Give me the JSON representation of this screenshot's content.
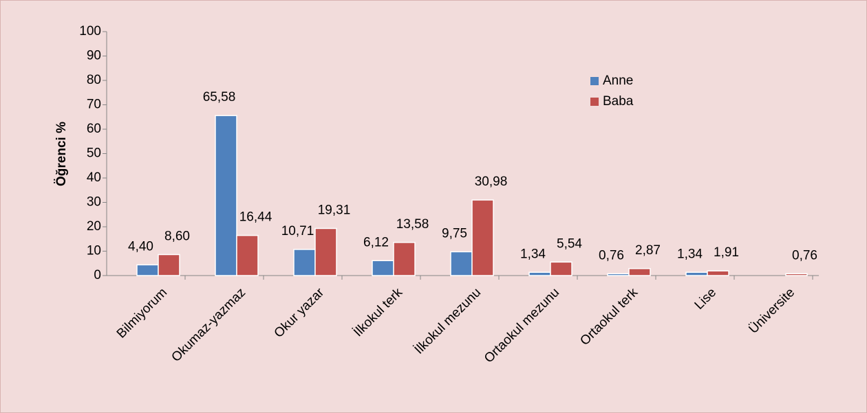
{
  "chart_data": {
    "type": "bar",
    "y_label": "Öğrenci %",
    "categories": [
      "Bilmiyorum",
      "Okumaz-yazmaz",
      "Okur yazar",
      "İlkokul terk",
      "İlkokul mezunu",
      "Ortaokul mezunu",
      "Ortaokul terk",
      "Lise",
      "Üniversite"
    ],
    "series": [
      {
        "name": "Anne",
        "color": "#4f81bd",
        "values": [
          4.4,
          65.58,
          10.71,
          6.12,
          9.75,
          1.34,
          0.76,
          1.34,
          null
        ],
        "value_labels": [
          "4,40",
          "65,58",
          "10,71",
          "6,12",
          "9,75",
          "1,34",
          "0,76",
          "1,34",
          null
        ]
      },
      {
        "name": "Baba",
        "color": "#c0504d",
        "values": [
          8.6,
          16.44,
          19.31,
          13.58,
          30.98,
          5.54,
          2.87,
          1.91,
          0.76
        ],
        "value_labels": [
          "8,60",
          "16,44",
          "19,31",
          "13,58",
          "30,98",
          "5,54",
          "2,87",
          "1,91",
          "0,76"
        ]
      }
    ],
    "ylim": [
      0,
      100
    ],
    "yticks": [
      0,
      10,
      20,
      30,
      40,
      50,
      60,
      70,
      80,
      90,
      100
    ],
    "legend": "top-right"
  }
}
